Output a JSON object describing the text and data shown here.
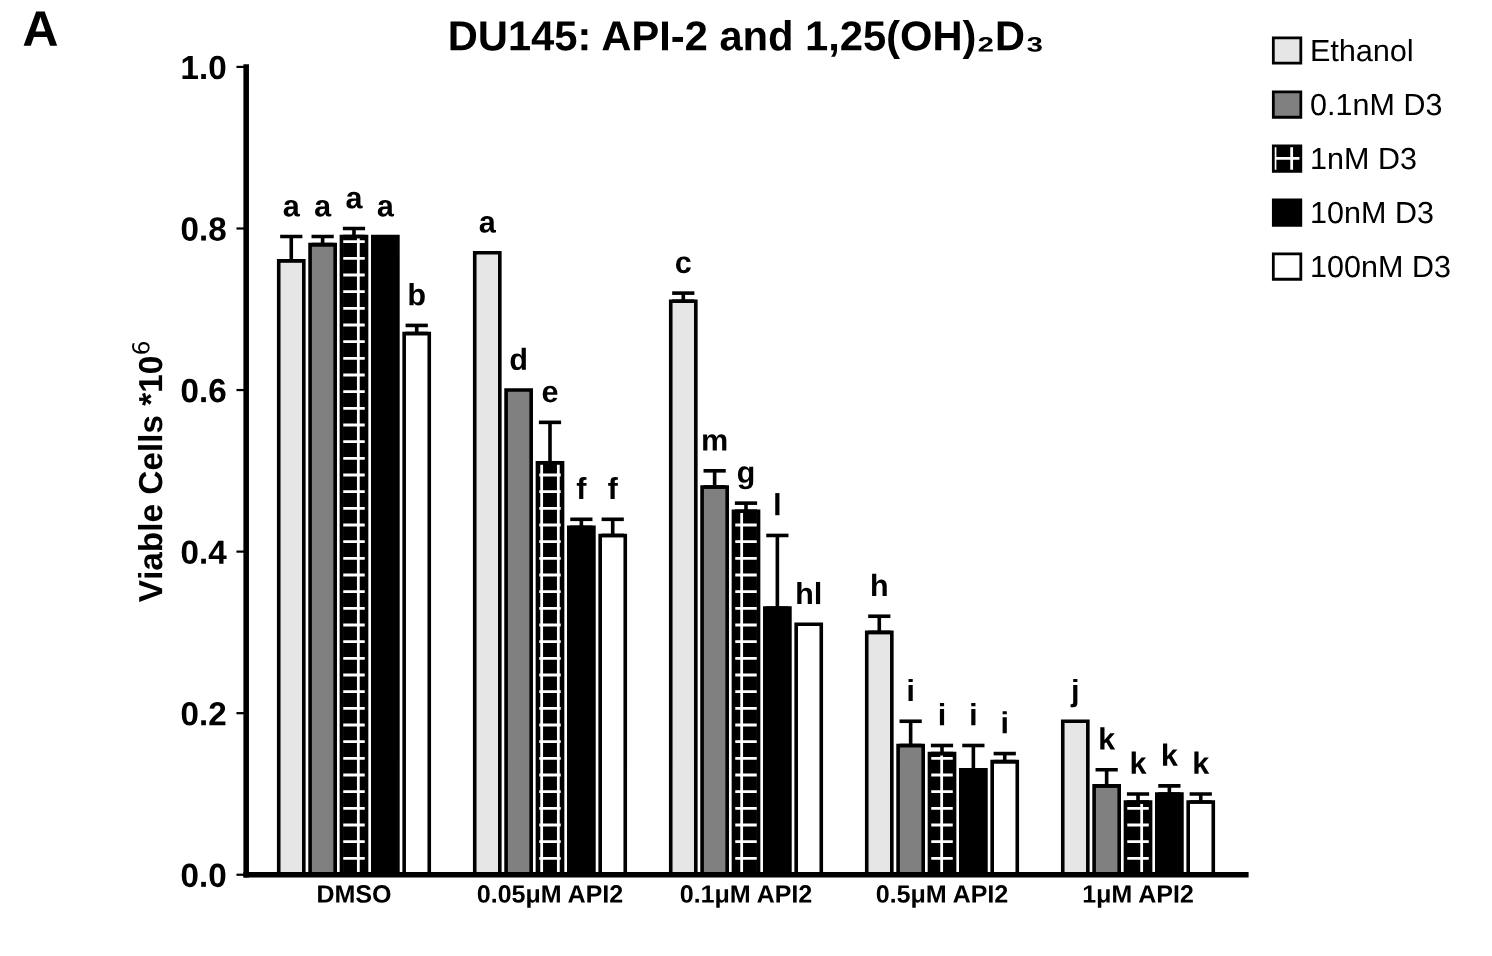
{
  "chart_data": {
    "type": "bar",
    "title": "DU145: API-2 and 1,25(OH)₂D₃",
    "ylabel": "Viable Cells *10$^{6}$",
    "categories": [
      "DMSO",
      "0.05μM API2",
      "0.1μM API2",
      "0.5μM API2",
      "1μM API2"
    ],
    "series": [
      {
        "name": "Ethanol",
        "color": "#e6e6e6",
        "values": [
          0.76,
          0.77,
          0.71,
          0.3,
          0.19
        ],
        "errors": [
          [
            0.76,
            0.79
          ],
          null,
          [
            0.71,
            0.72
          ],
          [
            0.3,
            0.32
          ],
          null
        ]
      },
      {
        "name": "0.1nM D3",
        "color": "#808080",
        "values": [
          0.78,
          0.6,
          0.48,
          0.16,
          0.11
        ],
        "errors": [
          [
            0.78,
            0.79
          ],
          null,
          [
            0.48,
            0.5
          ],
          [
            0.16,
            0.19
          ],
          [
            0.11,
            0.13
          ]
        ]
      },
      {
        "name": "1nM D3",
        "color": "#000000",
        "values": [
          0.79,
          0.51,
          0.45,
          0.15,
          0.09
        ],
        "errors": [
          [
            0.79,
            0.8
          ],
          [
            0.51,
            0.56
          ],
          [
            0.45,
            0.46
          ],
          [
            0.15,
            0.16
          ],
          [
            0.09,
            0.1
          ]
        ]
      },
      {
        "name": "10nM D3",
        "color": "#000000",
        "values": [
          0.79,
          0.43,
          0.33,
          0.13,
          0.1
        ],
        "errors": [
          null,
          [
            0.43,
            0.44
          ],
          [
            0.33,
            0.42
          ],
          [
            0.13,
            0.16
          ],
          [
            0.1,
            0.11
          ]
        ]
      },
      {
        "name": "100nM D3",
        "color": "#ffffff",
        "values": [
          0.67,
          0.42,
          0.31,
          0.14,
          0.09
        ],
        "errors": [
          [
            0.67,
            0.68
          ],
          [
            0.42,
            0.44
          ],
          null,
          [
            0.14,
            0.15
          ],
          [
            0.09,
            0.1
          ]
        ]
      }
    ],
    "ylim": [
      0,
      1.0
    ],
    "yticks": [
      {
        "value": 0,
        "label": "0.0"
      },
      0.2,
      0.4,
      0.6,
      0.8,
      {
        "value": 1.0,
        "label": "1.0"
      }
    ],
    "legend": "top right",
    "grid": false,
    "annotations": [
      "A",
      "a",
      "a",
      "a",
      "a",
      "b",
      "a",
      "d",
      "e",
      "f",
      "f",
      "c",
      "m",
      "g",
      "l",
      "hl",
      "h",
      "i",
      "i",
      "i",
      "i",
      "j",
      "k",
      "k",
      "k",
      "k"
    ]
  }
}
